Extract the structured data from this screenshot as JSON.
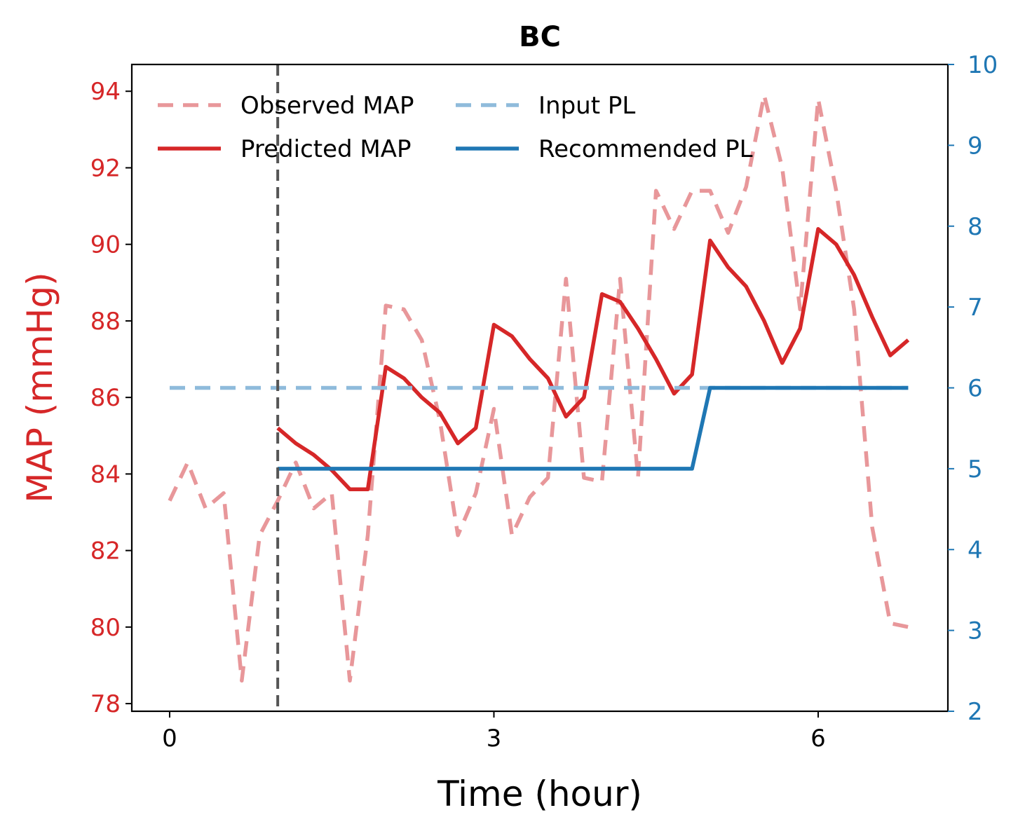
{
  "chart_data": {
    "type": "line",
    "title": "BC",
    "xlabel": "Time (hour)",
    "ylabel": "MAP (mmHg)",
    "y2label": "",
    "xlim": [
      -0.35,
      7.2
    ],
    "ylim": [
      77.8,
      94.7
    ],
    "y2lim": [
      2,
      10
    ],
    "xticks": [
      0,
      3,
      6
    ],
    "yticks": [
      78,
      80,
      82,
      84,
      86,
      88,
      90,
      92,
      94
    ],
    "y2ticks": [
      2,
      3,
      4,
      5,
      6,
      7,
      8,
      9,
      10
    ],
    "prediction_start": 1.0,
    "colors": {
      "observed": "#e8979a",
      "predicted": "#d62728",
      "input": "#8fbbdb",
      "recommended": "#1f77b4",
      "left_axis": "#d62728",
      "right_axis": "#1f77b4",
      "vline": "#555555"
    },
    "legend": {
      "placement": "top-left, 2 columns",
      "entries": [
        "Observed MAP",
        "Predicted MAP",
        "Input PL",
        "Recommended PL"
      ]
    },
    "series": [
      {
        "name": "Observed MAP",
        "axis": "left",
        "style": "dashed",
        "x": [
          0,
          0.167,
          0.333,
          0.5,
          0.667,
          0.833,
          1.0,
          1.167,
          1.333,
          1.5,
          1.667,
          1.833,
          2.0,
          2.167,
          2.333,
          2.5,
          2.667,
          2.833,
          3.0,
          3.167,
          3.333,
          3.5,
          3.667,
          3.833,
          4.0,
          4.167,
          4.333,
          4.5,
          4.667,
          4.833,
          5.0,
          5.167,
          5.333,
          5.5,
          5.667,
          5.833,
          6.0,
          6.167,
          6.333,
          6.5,
          6.667,
          6.833
        ],
        "y": [
          83.3,
          84.3,
          83.1,
          83.5,
          78.6,
          82.4,
          83.3,
          84.3,
          83.1,
          83.5,
          78.6,
          82.4,
          88.4,
          88.3,
          87.5,
          85.4,
          82.4,
          83.5,
          85.7,
          82.4,
          83.4,
          83.9,
          89.1,
          83.9,
          83.8,
          89.1,
          83.9,
          91.4,
          90.4,
          91.4,
          91.4,
          90.3,
          91.5,
          93.9,
          92.0,
          88.3,
          93.8,
          91.4,
          88.3,
          82.6,
          80.1,
          80.0
        ]
      },
      {
        "name": "Predicted MAP",
        "axis": "left",
        "style": "solid",
        "x": [
          1.0,
          1.167,
          1.333,
          1.5,
          1.667,
          1.833,
          2.0,
          2.167,
          2.333,
          2.5,
          2.667,
          2.833,
          3.0,
          3.167,
          3.333,
          3.5,
          3.667,
          3.833,
          4.0,
          4.167,
          4.333,
          4.5,
          4.667,
          4.833,
          5.0,
          5.167,
          5.333,
          5.5,
          5.667,
          5.833,
          6.0,
          6.167,
          6.333,
          6.5,
          6.667,
          6.833
        ],
        "y": [
          85.2,
          84.8,
          84.5,
          84.1,
          83.6,
          83.6,
          86.8,
          86.5,
          86.0,
          85.6,
          84.8,
          85.2,
          87.9,
          87.6,
          87.0,
          86.5,
          85.5,
          86.0,
          88.7,
          88.5,
          87.8,
          87.0,
          86.1,
          86.6,
          90.1,
          89.4,
          88.9,
          88.0,
          86.9,
          87.8,
          90.4,
          90.0,
          89.2,
          88.1,
          87.1,
          87.5
        ]
      },
      {
        "name": "Input PL",
        "axis": "right",
        "style": "dashed",
        "x": [
          0,
          6.833
        ],
        "y": [
          6,
          6
        ]
      },
      {
        "name": "Recommended PL",
        "axis": "right",
        "style": "solid",
        "x": [
          1.0,
          4.833,
          5.0,
          6.833
        ],
        "y": [
          5,
          5,
          6,
          6
        ]
      }
    ]
  }
}
